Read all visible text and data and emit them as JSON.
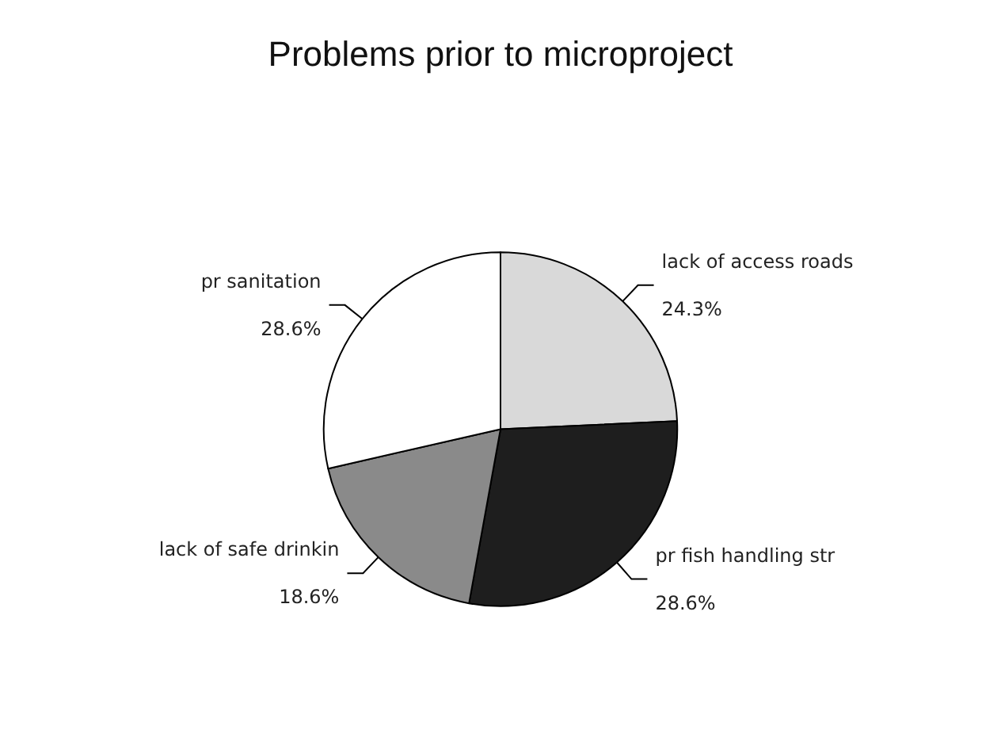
{
  "chart_data": {
    "type": "pie",
    "title": "Problems prior to microproject",
    "categories": [
      "lack of access roads",
      "pr fish handling str",
      "lack of safe drinkin",
      "pr sanitation"
    ],
    "values": [
      24.3,
      28.6,
      18.6,
      28.6
    ],
    "value_labels": [
      "24.3%",
      "28.6%",
      "18.6%",
      "28.6%"
    ],
    "colors": [
      "#d9d9d9",
      "#1e1e1e",
      "#8a8a8a",
      "#ffffff"
    ],
    "legend": false
  }
}
